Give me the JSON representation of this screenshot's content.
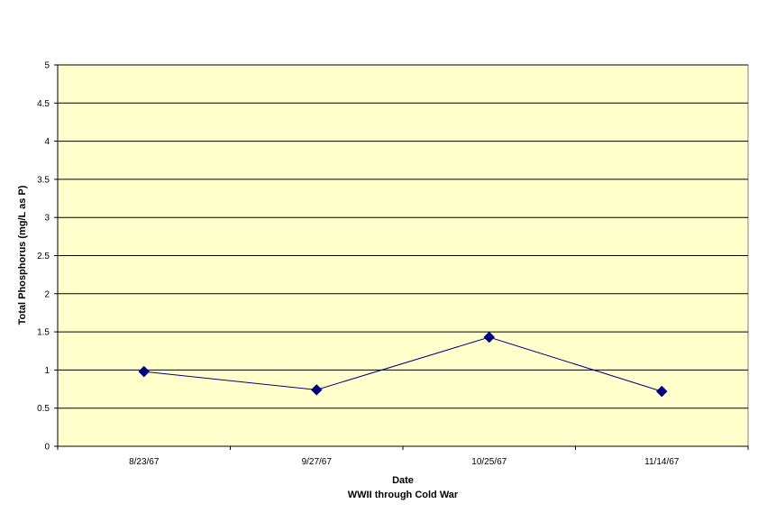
{
  "chart_data": {
    "type": "line",
    "title": "",
    "xlabel": "Date",
    "xlabel_sub": "WWII through Cold War",
    "ylabel": "Total Phosphorus (mg/L as P)",
    "ylim": [
      0,
      5
    ],
    "yticks": [
      "0",
      "0.5",
      "1",
      "1.5",
      "2",
      "2.5",
      "3",
      "3.5",
      "4",
      "4.5",
      "5"
    ],
    "categories": [
      "8/23/67",
      "9/27/67",
      "10/25/67",
      "11/14/67"
    ],
    "series": [
      {
        "values": [
          0.98,
          0.74,
          1.43,
          0.72
        ]
      }
    ],
    "grid": "horizontal",
    "legend": "none",
    "colors": {
      "plot_background": "#FFFFCC",
      "line": "#000080",
      "marker": "#000080",
      "gridline": "#000000"
    },
    "marker": "diamond"
  }
}
